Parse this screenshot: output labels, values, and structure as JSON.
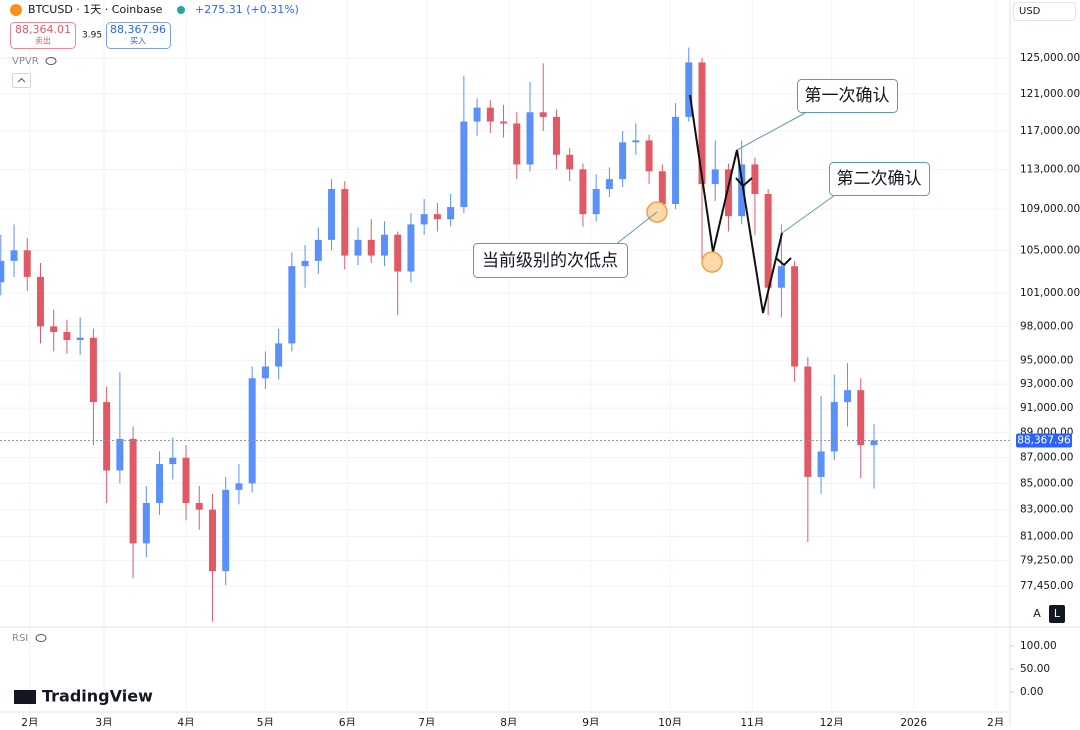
{
  "toolbar": {
    "symbol": "BTCUSD · 1天 · Coinbase",
    "change": "+275.31 (+0.31%)",
    "sell_price": "88,364.01",
    "sell_label": "卖出",
    "spread": "3.95",
    "buy_price": "88,367.96",
    "buy_label": "买入",
    "indicator": "VPVR",
    "currency": "USD",
    "scale_auto": "A",
    "scale_log": "L",
    "logo": "TradingView"
  },
  "annotations": [
    "第一次确认",
    "第二次确认",
    "当前级别的次低点"
  ],
  "chart_data": [
    {
      "type": "candlestick",
      "log_scale": true,
      "grid": true,
      "up_color": "#5b8ff9",
      "down_color": "#e05a66",
      "x": [
        20,
        25,
        30,
        35,
        40,
        45,
        50,
        55,
        60,
        65,
        70,
        75,
        80,
        85,
        90,
        95,
        100,
        105,
        110,
        115,
        120,
        125,
        130,
        135,
        140,
        145,
        150,
        155,
        160,
        165,
        170,
        175,
        180,
        185,
        190,
        195,
        200,
        205,
        210,
        215,
        220,
        225,
        230,
        235,
        240,
        245,
        250,
        255,
        260,
        265,
        270,
        275,
        280,
        285,
        290,
        295,
        300,
        305,
        310,
        315,
        320,
        325,
        330,
        335,
        340,
        345,
        350
      ],
      "open": [
        102000,
        104000,
        105000,
        102500,
        98000,
        97500,
        96800,
        97000,
        91500,
        86000,
        88500,
        80500,
        83500,
        86500,
        87000,
        83500,
        83000,
        78500,
        84500,
        85000,
        93500,
        94500,
        96500,
        103500,
        104000,
        106000,
        111000,
        104500,
        106000,
        104500,
        106500,
        103000,
        107500,
        108500,
        108000,
        109200,
        118000,
        119500,
        118000,
        117800,
        113500,
        119000,
        118500,
        114500,
        113000,
        108500,
        111000,
        112000,
        115800,
        116000,
        112800,
        109500,
        118500,
        124500,
        111500,
        113000,
        108300,
        113500,
        110500,
        101500,
        103500,
        94500,
        85500,
        87500,
        91500,
        92500,
        88000
      ],
      "high": [
        106500,
        107500,
        106200,
        103800,
        99500,
        98600,
        98800,
        97800,
        92800,
        94000,
        89500,
        84800,
        87500,
        88600,
        88000,
        84800,
        84200,
        85500,
        86500,
        94500,
        95800,
        97800,
        104800,
        105500,
        107200,
        112000,
        111800,
        107200,
        108000,
        107800,
        106800,
        108600,
        110000,
        109600,
        110500,
        123000,
        120500,
        120300,
        119800,
        119000,
        122300,
        124400,
        119300,
        115200,
        113600,
        112500,
        113200,
        117000,
        117800,
        116600,
        113500,
        120000,
        126200,
        125000,
        116000,
        113600,
        116000,
        114200,
        111000,
        107500,
        104000,
        95300,
        92000,
        93800,
        94800,
        93500,
        89700
      ],
      "low": [
        100800,
        102500,
        101200,
        96500,
        95800,
        95600,
        95500,
        88000,
        83500,
        85000,
        78000,
        79500,
        82600,
        85300,
        82200,
        81500,
        75000,
        77500,
        83400,
        84300,
        92600,
        93400,
        95800,
        101500,
        102800,
        105000,
        103200,
        103600,
        103800,
        103500,
        99000,
        102000,
        106500,
        106800,
        107300,
        108600,
        116500,
        116800,
        116300,
        112000,
        112800,
        117000,
        113000,
        111800,
        107300,
        107800,
        110200,
        111200,
        114500,
        111500,
        108600,
        109000,
        118000,
        104000,
        109800,
        106800,
        107500,
        106500,
        99000,
        98800,
        93200,
        80600,
        84200,
        86800,
        89500,
        85400,
        84600
      ],
      "close": [
        104000,
        105000,
        102500,
        98000,
        97500,
        96800,
        97000,
        91500,
        86000,
        88500,
        80500,
        83500,
        86500,
        87000,
        83500,
        83000,
        78500,
        84500,
        85000,
        93500,
        94500,
        96500,
        103500,
        104000,
        106000,
        111000,
        104500,
        106000,
        104500,
        106500,
        103000,
        107500,
        108500,
        108000,
        109200,
        118000,
        119500,
        118000,
        117800,
        113500,
        119000,
        118500,
        114500,
        113000,
        108500,
        111000,
        112000,
        115800,
        116000,
        112800,
        109500,
        118500,
        124500,
        111500,
        113000,
        108300,
        113500,
        110500,
        101500,
        103500,
        94500,
        85500,
        87500,
        91500,
        92500,
        88000,
        88367.96
      ],
      "last_price": {
        "value": 88367.96,
        "label": "88,367.96"
      },
      "ylim": [
        74690,
        131750
      ],
      "yticks": [
        {
          "value": 125000,
          "label": "125,000.00"
        },
        {
          "value": 121000,
          "label": "121,000.00"
        },
        {
          "value": 117000,
          "label": "117,000.00"
        },
        {
          "value": 113000,
          "label": "113,000.00"
        },
        {
          "value": 109000,
          "label": "109,000.00"
        },
        {
          "value": 105000,
          "label": "105,000.00"
        },
        {
          "value": 101000,
          "label": "101,000.00"
        },
        {
          "value": 98000,
          "label": "98,000.00"
        },
        {
          "value": 95000,
          "label": "95,000.00"
        },
        {
          "value": 93000,
          "label": "93,000.00"
        },
        {
          "value": 91000,
          "label": "91,000.00"
        },
        {
          "value": 89000,
          "label": "89,000.00"
        },
        {
          "value": 87000,
          "label": "87,000.00"
        },
        {
          "value": 85000,
          "label": "85,000.00"
        },
        {
          "value": 83000,
          "label": "83,000.00"
        },
        {
          "value": 81000,
          "label": "81,000.00"
        },
        {
          "value": 79250,
          "label": "79,250.00"
        },
        {
          "value": 77450,
          "label": "77,450.00"
        }
      ],
      "xlim": [
        19.7,
        401.4
      ],
      "xticks": [
        {
          "value": 31,
          "label": "2月"
        },
        {
          "value": 59,
          "label": "3月"
        },
        {
          "value": 90,
          "label": "4月"
        },
        {
          "value": 120,
          "label": "5月"
        },
        {
          "value": 151,
          "label": "6月"
        },
        {
          "value": 181,
          "label": "7月"
        },
        {
          "value": 212,
          "label": "8月"
        },
        {
          "value": 243,
          "label": "9月"
        },
        {
          "value": 273,
          "label": "10月"
        },
        {
          "value": 304,
          "label": "11月"
        },
        {
          "value": 334,
          "label": "12月"
        },
        {
          "value": 365,
          "label": "2026"
        },
        {
          "value": 396,
          "label": "2月"
        }
      ]
    },
    {
      "type": "rsi",
      "title": "RSI",
      "ylim": [
        -28,
        139
      ],
      "yticks": [
        {
          "value": 100,
          "label": "100.00"
        },
        {
          "value": 50,
          "label": "50.00"
        },
        {
          "value": 0,
          "label": "0.00"
        }
      ]
    }
  ]
}
